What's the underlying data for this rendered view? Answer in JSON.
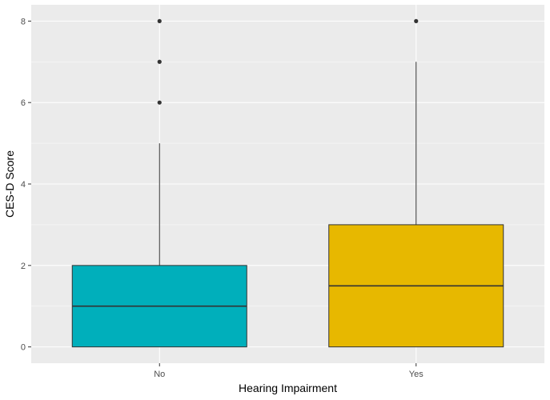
{
  "chart_data": {
    "type": "boxplot",
    "xlabel": "Hearing Impairment",
    "ylabel": "CES-D Score",
    "ylim": [
      -0.4,
      8.4
    ],
    "yticks": [
      0,
      2,
      4,
      6,
      8
    ],
    "categories": [
      "No",
      "Yes"
    ],
    "boxes": [
      {
        "category": "No",
        "whisker_low": 0,
        "q1": 0,
        "median": 1,
        "q3": 2,
        "whisker_high": 5,
        "outliers": [
          6,
          7,
          8
        ],
        "color": "#00AFBB"
      },
      {
        "category": "Yes",
        "whisker_low": 0,
        "q1": 0,
        "median": 1.5,
        "q3": 3,
        "whisker_high": 7,
        "outliers": [
          8
        ],
        "color": "#E7B800"
      }
    ],
    "grid": true,
    "colors": {
      "panel": "#ebebeb",
      "grid": "#ffffff",
      "line": "#333333",
      "point": "#333333"
    }
  }
}
